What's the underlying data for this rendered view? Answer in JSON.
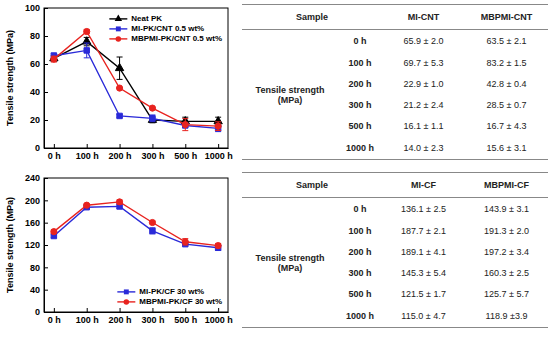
{
  "chart_data": [
    {
      "type": "line",
      "y_label": "Tensile strength (MPa)",
      "categories": [
        "0 h",
        "100 h",
        "200 h",
        "300 h",
        "500 h",
        "1000 h"
      ],
      "ylim": [
        0,
        100
      ],
      "yticks": [
        0,
        20,
        40,
        60,
        80,
        100
      ],
      "grid": false,
      "legend": "upper right",
      "series": [
        {
          "name": "Neat PK",
          "color": "#000000",
          "marker": "triangle",
          "values": [
            64,
            76,
            57,
            20,
            19,
            19
          ],
          "errors": [
            2,
            3,
            8,
            2,
            3,
            3
          ]
        },
        {
          "name": "MI-PK/CNT 0.5 wt%",
          "color": "#2a2ad8",
          "marker": "square",
          "values": [
            65.9,
            69.7,
            22.9,
            21.2,
            16.1,
            14.0
          ],
          "errors": [
            2.0,
            5.3,
            1.0,
            2.4,
            1.1,
            2.3
          ]
        },
        {
          "name": "MBPMI-PK/CNT 0.5 wt%",
          "color": "#e8231f",
          "marker": "circle",
          "values": [
            63.5,
            83.2,
            42.8,
            28.5,
            16.7,
            15.6
          ],
          "errors": [
            2.1,
            1.5,
            0.4,
            0.7,
            4.3,
            3.1
          ]
        }
      ]
    },
    {
      "type": "line",
      "y_label": "Tensile strength (MPa)",
      "categories": [
        "0 h",
        "100 h",
        "200 h",
        "300 h",
        "500 h",
        "1000 h"
      ],
      "ylim": [
        0,
        240
      ],
      "yticks": [
        0,
        40,
        80,
        120,
        160,
        200,
        240
      ],
      "grid": false,
      "legend": "lower right",
      "series": [
        {
          "name": "MI-PK/CF 30 wt%",
          "color": "#2a2ad8",
          "marker": "square",
          "values": [
            136.1,
            187.7,
            189.1,
            145.3,
            121.5,
            115.0
          ],
          "errors": [
            2.5,
            2.1,
            4.1,
            5.4,
            1.7,
            4.7
          ]
        },
        {
          "name": "MBPMI-PK/CF 30 wt%",
          "color": "#e8231f",
          "marker": "circle",
          "values": [
            143.9,
            191.3,
            197.2,
            160.3,
            125.7,
            118.9
          ],
          "errors": [
            3.1,
            2.0,
            3.4,
            2.5,
            5.7,
            3.9
          ]
        }
      ]
    }
  ],
  "tables": [
    {
      "header": [
        "Sample",
        "MI-CNT",
        "MBPMI-CNT"
      ],
      "row_label": "Tensile strength (MPa)",
      "rows": [
        [
          "0 h",
          "65.9 ± 2.0",
          "63.5 ± 2.1"
        ],
        [
          "100 h",
          "69.7 ± 5.3",
          "83.2 ± 1.5"
        ],
        [
          "200 h",
          "22.9 ± 1.0",
          "42.8 ± 0.4"
        ],
        [
          "300 h",
          "21.2 ± 2.4",
          "28.5 ± 0.7"
        ],
        [
          "500 h",
          "16.1 ± 1.1",
          "16.7 ± 4.3"
        ],
        [
          "1000 h",
          "14.0 ± 2.3",
          "15.6 ± 3.1"
        ]
      ]
    },
    {
      "header": [
        "Sample",
        "MI-CF",
        "MBPMI-CF"
      ],
      "row_label": "Tensile strength (MPa)",
      "rows": [
        [
          "0 h",
          "136.1 ± 2.5",
          "143.9 ± 3.1"
        ],
        [
          "100 h",
          "187.7 ± 2.1",
          "191.3 ± 2.0"
        ],
        [
          "200 h",
          "189.1 ± 4.1",
          "197.2 ± 3.4"
        ],
        [
          "300 h",
          "145.3 ± 5.4",
          "160.3 ± 2.5"
        ],
        [
          "500 h",
          "121.5 ± 1.7",
          "125.7 ± 5.7"
        ],
        [
          "1000 h",
          "115.0 ± 4.7",
          "118.9 ±3.9"
        ]
      ]
    }
  ]
}
